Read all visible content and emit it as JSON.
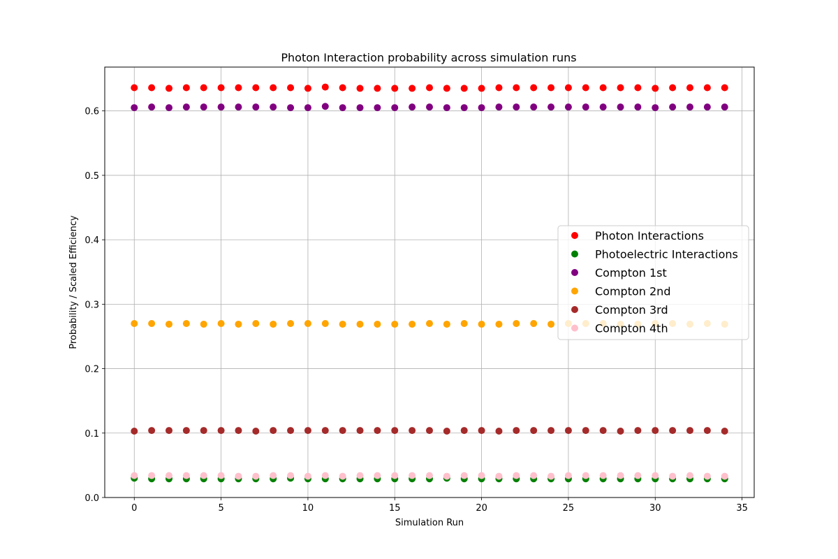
{
  "chart_data": {
    "type": "scatter",
    "title": "Photon Interaction probability across simulation runs",
    "xlabel": "Simulation Run",
    "ylabel": "Probability / Scaled Efficiency",
    "xlim": [
      -1.7,
      35.7
    ],
    "ylim": [
      0.0,
      0.668
    ],
    "xticks": [
      0,
      5,
      10,
      15,
      20,
      25,
      30,
      35
    ],
    "xtick_labels": [
      "0",
      "5",
      "10",
      "15",
      "20",
      "25",
      "30",
      "35"
    ],
    "yticks": [
      0.0,
      0.1,
      0.2,
      0.3,
      0.4,
      0.5,
      0.6
    ],
    "ytick_labels": [
      "0.0",
      "0.1",
      "0.2",
      "0.3",
      "0.4",
      "0.5",
      "0.6"
    ],
    "grid": true,
    "legend_position": "center-right",
    "x": [
      0,
      1,
      2,
      3,
      4,
      5,
      6,
      7,
      8,
      9,
      10,
      11,
      12,
      13,
      14,
      15,
      16,
      17,
      18,
      19,
      20,
      21,
      22,
      23,
      24,
      25,
      26,
      27,
      28,
      29,
      30,
      31,
      32,
      33,
      34
    ],
    "series": [
      {
        "name": "Photon Interactions",
        "color": "#ff0000",
        "values": [
          0.636,
          0.636,
          0.635,
          0.636,
          0.636,
          0.636,
          0.636,
          0.636,
          0.636,
          0.636,
          0.635,
          0.637,
          0.636,
          0.635,
          0.635,
          0.635,
          0.635,
          0.636,
          0.635,
          0.635,
          0.635,
          0.636,
          0.636,
          0.636,
          0.636,
          0.636,
          0.636,
          0.636,
          0.636,
          0.636,
          0.635,
          0.636,
          0.636,
          0.636,
          0.636
        ]
      },
      {
        "name": "Photoelectric Interactions",
        "color": "#008000",
        "values": [
          0.03,
          0.029,
          0.029,
          0.029,
          0.029,
          0.029,
          0.029,
          0.029,
          0.029,
          0.03,
          0.029,
          0.029,
          0.029,
          0.029,
          0.029,
          0.029,
          0.029,
          0.029,
          0.03,
          0.029,
          0.029,
          0.029,
          0.029,
          0.029,
          0.029,
          0.029,
          0.029,
          0.029,
          0.029,
          0.029,
          0.029,
          0.029,
          0.029,
          0.029,
          0.029
        ]
      },
      {
        "name": "Compton 1st",
        "color": "#800080",
        "values": [
          0.605,
          0.606,
          0.605,
          0.606,
          0.606,
          0.606,
          0.606,
          0.606,
          0.606,
          0.605,
          0.605,
          0.607,
          0.605,
          0.605,
          0.605,
          0.605,
          0.606,
          0.606,
          0.605,
          0.605,
          0.605,
          0.606,
          0.606,
          0.606,
          0.606,
          0.606,
          0.606,
          0.606,
          0.606,
          0.606,
          0.605,
          0.606,
          0.606,
          0.606,
          0.606
        ]
      },
      {
        "name": "Compton 2nd",
        "color": "#ffa500",
        "values": [
          0.27,
          0.27,
          0.269,
          0.27,
          0.269,
          0.27,
          0.269,
          0.27,
          0.269,
          0.27,
          0.27,
          0.27,
          0.269,
          0.269,
          0.269,
          0.269,
          0.269,
          0.27,
          0.269,
          0.27,
          0.269,
          0.269,
          0.27,
          0.27,
          0.269,
          0.27,
          0.27,
          0.27,
          0.269,
          0.269,
          0.27,
          0.27,
          0.269,
          0.27,
          0.269
        ]
      },
      {
        "name": "Compton 3rd",
        "color": "#a52a2a",
        "values": [
          0.103,
          0.104,
          0.104,
          0.104,
          0.104,
          0.104,
          0.104,
          0.103,
          0.104,
          0.104,
          0.104,
          0.104,
          0.104,
          0.104,
          0.104,
          0.104,
          0.104,
          0.104,
          0.103,
          0.104,
          0.104,
          0.103,
          0.104,
          0.104,
          0.104,
          0.104,
          0.104,
          0.104,
          0.103,
          0.104,
          0.104,
          0.104,
          0.104,
          0.104,
          0.103
        ]
      },
      {
        "name": "Compton 4th",
        "color": "#ffc0cb",
        "values": [
          0.034,
          0.034,
          0.034,
          0.034,
          0.034,
          0.034,
          0.033,
          0.033,
          0.034,
          0.034,
          0.033,
          0.034,
          0.033,
          0.034,
          0.034,
          0.034,
          0.034,
          0.034,
          0.033,
          0.034,
          0.034,
          0.033,
          0.034,
          0.034,
          0.033,
          0.034,
          0.034,
          0.034,
          0.034,
          0.034,
          0.034,
          0.033,
          0.034,
          0.033,
          0.033
        ]
      }
    ]
  }
}
